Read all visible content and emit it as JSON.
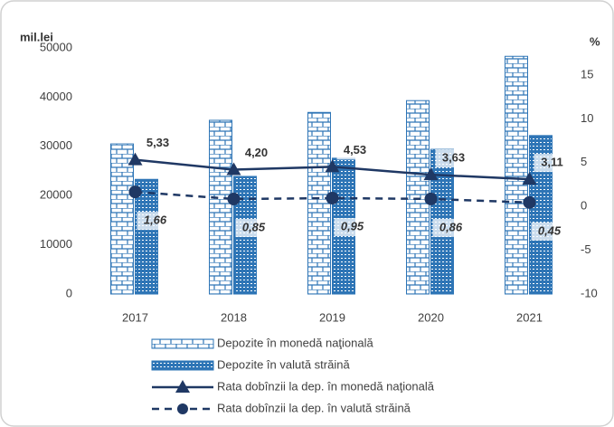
{
  "chart_data": {
    "type": "bar_line",
    "ylabel": "mil.lei",
    "y2label": "%",
    "categories": [
      "2017",
      "2018",
      "2019",
      "2020",
      "2021"
    ],
    "ylim": [
      0,
      50000
    ],
    "yticks": [
      0,
      10000,
      20000,
      30000,
      40000,
      50000
    ],
    "y2lim": [
      -10,
      18.1
    ],
    "y2ticks": [
      -10,
      -5,
      0,
      5,
      10,
      15
    ],
    "series": [
      {
        "name": "Depozite în monedă naţională",
        "color": "#2e75b6",
        "kind": "bar",
        "values": [
          30500,
          35300,
          36900,
          39300,
          48300
        ]
      },
      {
        "name": "Depozite în valută străină",
        "color": "#2e75b6",
        "kind": "bar",
        "values": [
          23300,
          23900,
          27600,
          29400,
          32200
        ]
      },
      {
        "name": "Rata dobînzii la dep. în monedă naţională",
        "color": "#1f3864",
        "kind": "line",
        "axis": "y2",
        "marker": "triangle",
        "values": [
          5.33,
          4.2,
          4.53,
          3.63,
          3.11
        ],
        "value_labels": [
          "5,33",
          "4,20",
          "4,53",
          "3,63",
          "3,11"
        ]
      },
      {
        "name": "Rata dobînzii la dep. în valută străină",
        "color": "#1f3864",
        "kind": "line",
        "axis": "y2",
        "marker": "circle",
        "dashed": true,
        "values": [
          1.66,
          0.85,
          0.95,
          0.86,
          0.45
        ],
        "value_labels": [
          "1,66",
          "0,85",
          "0,95",
          "0,86",
          "0,45"
        ]
      }
    ]
  }
}
